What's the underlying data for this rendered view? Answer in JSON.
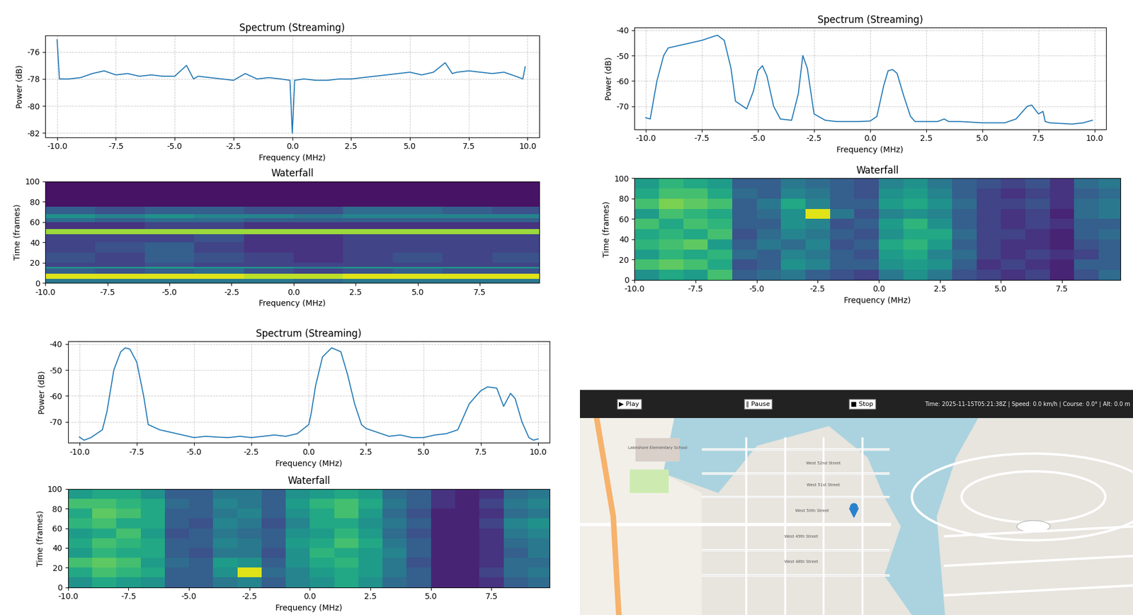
{
  "chart_data": [
    {
      "type": "line",
      "title": "Spectrum (Streaming)",
      "xlabel": "Frequency (MHz)",
      "ylabel": "Power (dB)",
      "color": "#1f77b4",
      "grid": true,
      "x": [
        -10.0,
        -9.9,
        -9.5,
        -9.0,
        -8.5,
        -8.0,
        -7.5,
        -7.0,
        -6.5,
        -6.0,
        -5.5,
        -5.0,
        -4.5,
        -4.2,
        -4.0,
        -3.5,
        -3.0,
        -2.5,
        -2.0,
        -1.5,
        -1.0,
        -0.5,
        -0.1,
        0.0,
        0.1,
        0.5,
        1.0,
        1.5,
        2.0,
        2.5,
        3.0,
        3.5,
        4.0,
        4.5,
        5.0,
        5.5,
        6.0,
        6.5,
        6.8,
        7.0,
        7.5,
        8.0,
        8.5,
        9.0,
        9.5,
        9.8,
        9.9
      ],
      "values": [
        -75.1,
        -78.0,
        -78.0,
        -77.9,
        -77.6,
        -77.4,
        -77.7,
        -77.6,
        -77.8,
        -77.7,
        -77.8,
        -77.8,
        -77.0,
        -78.0,
        -77.8,
        -77.9,
        -78.0,
        -78.1,
        -77.6,
        -78.0,
        -77.9,
        -78.0,
        -78.1,
        -82.0,
        -78.1,
        -78.0,
        -78.1,
        -78.1,
        -78.0,
        -78.0,
        -77.9,
        -77.8,
        -77.7,
        -77.6,
        -77.5,
        -77.7,
        -77.5,
        -76.8,
        -77.6,
        -77.5,
        -77.4,
        -77.5,
        -77.6,
        -77.5,
        -77.8,
        -78.0,
        -77.1
      ],
      "xlim": [
        -10.5,
        10.5
      ],
      "ylim": [
        -82.3,
        -74.8
      ],
      "xticks": [
        -10.0,
        -7.5,
        -5.0,
        -2.5,
        0.0,
        2.5,
        5.0,
        7.5,
        10.0
      ],
      "yticks": [
        -82,
        -80,
        -78,
        -76
      ]
    },
    {
      "type": "heatmap",
      "title": "Waterfall",
      "xlabel": "Frequency (MHz)",
      "ylabel": "Time (frames)",
      "x_edges": [
        -10,
        -8,
        -6,
        -4,
        -2,
        0,
        2,
        4,
        6,
        8,
        10
      ],
      "y_edges": [
        0,
        4,
        9,
        14,
        16,
        20,
        30,
        40,
        48,
        53,
        60,
        64,
        68,
        75,
        100
      ],
      "cells": [
        [
          0.4,
          0.4,
          0.4,
          0.4,
          0.4,
          0.35,
          0.4,
          0.4,
          0.4,
          0.4
        ],
        [
          0.95,
          0.95,
          0.95,
          0.95,
          0.9,
          0.9,
          0.95,
          0.95,
          0.95,
          0.95
        ],
        [
          0.3,
          0.25,
          0.3,
          0.35,
          0.25,
          0.2,
          0.25,
          0.3,
          0.25,
          0.25
        ],
        [
          0.5,
          0.5,
          0.55,
          0.5,
          0.5,
          0.45,
          0.5,
          0.5,
          0.5,
          0.5
        ],
        [
          0.2,
          0.2,
          0.25,
          0.2,
          0.2,
          0.2,
          0.2,
          0.2,
          0.2,
          0.2
        ],
        [
          0.25,
          0.2,
          0.3,
          0.25,
          0.2,
          0.15,
          0.2,
          0.25,
          0.2,
          0.25
        ],
        [
          0.2,
          0.25,
          0.3,
          0.2,
          0.15,
          0.15,
          0.2,
          0.2,
          0.2,
          0.2
        ],
        [
          0.2,
          0.2,
          0.2,
          0.25,
          0.15,
          0.15,
          0.2,
          0.2,
          0.2,
          0.2
        ],
        [
          0.85,
          0.85,
          0.85,
          0.85,
          0.85,
          0.85,
          0.85,
          0.85,
          0.85,
          0.85
        ],
        [
          0.15,
          0.15,
          0.2,
          0.2,
          0.15,
          0.15,
          0.15,
          0.15,
          0.15,
          0.15
        ],
        [
          0.35,
          0.3,
          0.35,
          0.35,
          0.3,
          0.3,
          0.3,
          0.3,
          0.3,
          0.3
        ],
        [
          0.5,
          0.45,
          0.5,
          0.45,
          0.45,
          0.4,
          0.45,
          0.45,
          0.45,
          0.45
        ],
        [
          0.3,
          0.25,
          0.3,
          0.3,
          0.25,
          0.25,
          0.35,
          0.35,
          0.3,
          0.25
        ],
        [
          0.05,
          0.05,
          0.05,
          0.05,
          0.05,
          0.05,
          0.05,
          0.05,
          0.05,
          0.05
        ]
      ],
      "color_range": [
        0,
        1
      ],
      "xlim": [
        -10.0,
        9.9
      ],
      "ylim": [
        0,
        100
      ],
      "xticks": [
        -10.0,
        -7.5,
        -5.0,
        -2.5,
        0.0,
        2.5,
        5.0,
        7.5
      ],
      "yticks": [
        0,
        20,
        40,
        60,
        80,
        100
      ]
    },
    {
      "type": "line",
      "title": "Spectrum (Streaming)",
      "xlabel": "Frequency (MHz)",
      "ylabel": "Power (dB)",
      "color": "#1f77b4",
      "grid": true,
      "x": [
        -10.0,
        -9.8,
        -9.5,
        -9.2,
        -9.0,
        -8.5,
        -8.0,
        -7.5,
        -7.0,
        -6.8,
        -6.5,
        -6.2,
        -6.0,
        -5.5,
        -5.2,
        -5.0,
        -4.8,
        -4.6,
        -4.3,
        -4.0,
        -3.5,
        -3.2,
        -3.0,
        -2.8,
        -2.5,
        -2.0,
        -1.5,
        -1.0,
        -0.5,
        0.0,
        0.3,
        0.6,
        0.8,
        1.0,
        1.2,
        1.5,
        1.8,
        2.0,
        2.5,
        3.0,
        3.3,
        3.5,
        4.0,
        5.0,
        6.0,
        6.5,
        7.0,
        7.2,
        7.5,
        7.7,
        7.8,
        8.0,
        9.0,
        9.5,
        9.9
      ],
      "values": [
        -74.5,
        -75.0,
        -60.0,
        -50.0,
        -47.0,
        -46.0,
        -45.0,
        -44.0,
        -42.5,
        -42.0,
        -44.0,
        -55.0,
        -68.0,
        -71.0,
        -64.0,
        -56.0,
        -54.0,
        -58.0,
        -70.0,
        -75.0,
        -75.5,
        -65.0,
        -50.0,
        -55.0,
        -73.0,
        -75.5,
        -76.0,
        -76.0,
        -76.0,
        -75.8,
        -74.0,
        -62.0,
        -56.0,
        -55.5,
        -57.0,
        -66.0,
        -74.0,
        -76.0,
        -76.0,
        -76.0,
        -75.0,
        -76.0,
        -76.0,
        -76.5,
        -76.5,
        -75.0,
        -70.0,
        -69.5,
        -73.0,
        -72.0,
        -76.0,
        -76.5,
        -77.0,
        -76.5,
        -75.5
      ],
      "xlim": [
        -10.5,
        10.5
      ],
      "ylim": [
        -79,
        -39
      ],
      "xticks": [
        -10.0,
        -7.5,
        -5.0,
        -2.5,
        0.0,
        2.5,
        5.0,
        7.5,
        10.0
      ],
      "yticks": [
        -70,
        -60,
        -50,
        -40
      ]
    },
    {
      "type": "heatmap",
      "title": "Waterfall",
      "xlabel": "Frequency (MHz)",
      "ylabel": "Time (frames)",
      "x_edges": [
        -10,
        -9,
        -8,
        -7,
        -6,
        -5,
        -4,
        -3,
        -2,
        -1,
        0,
        1,
        2,
        3,
        4,
        5,
        6,
        7,
        8,
        9,
        10
      ],
      "y_edges": [
        0,
        10,
        20,
        30,
        40,
        50,
        60,
        70,
        80,
        90,
        100
      ],
      "cells": [
        [
          0.5,
          0.6,
          0.55,
          0.7,
          0.3,
          0.35,
          0.4,
          0.3,
          0.25,
          0.2,
          0.4,
          0.5,
          0.4,
          0.25,
          0.2,
          0.15,
          0.2,
          0.1,
          0.25,
          0.35
        ],
        [
          0.7,
          0.75,
          0.7,
          0.6,
          0.25,
          0.3,
          0.5,
          0.45,
          0.3,
          0.3,
          0.5,
          0.55,
          0.5,
          0.3,
          0.15,
          0.2,
          0.15,
          0.1,
          0.3,
          0.3
        ],
        [
          0.55,
          0.65,
          0.6,
          0.65,
          0.35,
          0.3,
          0.45,
          0.4,
          0.3,
          0.25,
          0.55,
          0.6,
          0.45,
          0.35,
          0.2,
          0.15,
          0.2,
          0.15,
          0.2,
          0.3
        ],
        [
          0.65,
          0.7,
          0.75,
          0.55,
          0.3,
          0.4,
          0.35,
          0.45,
          0.25,
          0.3,
          0.6,
          0.65,
          0.55,
          0.3,
          0.2,
          0.15,
          0.15,
          0.1,
          0.25,
          0.3
        ],
        [
          0.6,
          0.65,
          0.6,
          0.7,
          0.25,
          0.35,
          0.45,
          0.4,
          0.3,
          0.25,
          0.5,
          0.6,
          0.6,
          0.35,
          0.2,
          0.2,
          0.15,
          0.1,
          0.3,
          0.35
        ],
        [
          0.7,
          0.6,
          0.7,
          0.65,
          0.3,
          0.3,
          0.5,
          0.45,
          0.25,
          0.3,
          0.55,
          0.65,
          0.5,
          0.3,
          0.2,
          0.15,
          0.2,
          0.15,
          0.3,
          0.3
        ],
        [
          0.55,
          0.7,
          0.65,
          0.6,
          0.3,
          0.35,
          0.5,
          0.95,
          0.4,
          0.25,
          0.45,
          0.5,
          0.45,
          0.3,
          0.2,
          0.15,
          0.2,
          0.1,
          0.35,
          0.4
        ],
        [
          0.7,
          0.8,
          0.75,
          0.7,
          0.3,
          0.4,
          0.6,
          0.45,
          0.3,
          0.3,
          0.55,
          0.6,
          0.5,
          0.35,
          0.2,
          0.2,
          0.25,
          0.15,
          0.35,
          0.4
        ],
        [
          0.6,
          0.7,
          0.7,
          0.6,
          0.35,
          0.3,
          0.45,
          0.4,
          0.3,
          0.25,
          0.5,
          0.55,
          0.45,
          0.3,
          0.2,
          0.15,
          0.2,
          0.15,
          0.3,
          0.35
        ],
        [
          0.55,
          0.65,
          0.6,
          0.55,
          0.3,
          0.3,
          0.4,
          0.35,
          0.3,
          0.25,
          0.45,
          0.5,
          0.4,
          0.3,
          0.25,
          0.2,
          0.25,
          0.15,
          0.35,
          0.4
        ]
      ],
      "color_range": [
        0,
        1
      ],
      "xlim": [
        -10.0,
        9.9
      ],
      "ylim": [
        0,
        100
      ],
      "xticks": [
        -10.0,
        -7.5,
        -5.0,
        -2.5,
        0.0,
        2.5,
        5.0,
        7.5
      ],
      "yticks": [
        0,
        20,
        40,
        60,
        80,
        100
      ]
    },
    {
      "type": "line",
      "title": "Spectrum (Streaming)",
      "xlabel": "Frequency (MHz)",
      "ylabel": "Power (dB)",
      "color": "#1f77b4",
      "grid": true,
      "x": [
        -10.0,
        -9.8,
        -9.5,
        -9.0,
        -8.8,
        -8.5,
        -8.2,
        -8.0,
        -7.8,
        -7.5,
        -7.2,
        -7.0,
        -6.5,
        -6.0,
        -5.5,
        -5.0,
        -4.5,
        -4.0,
        -3.5,
        -3.0,
        -2.5,
        -2.0,
        -1.5,
        -1.0,
        -0.5,
        0.0,
        0.1,
        0.3,
        0.6,
        1.0,
        1.4,
        1.7,
        2.0,
        2.3,
        2.5,
        3.0,
        3.5,
        4.0,
        4.5,
        5.0,
        5.5,
        6.0,
        6.5,
        6.8,
        7.0,
        7.5,
        7.8,
        8.2,
        8.5,
        8.8,
        9.0,
        9.3,
        9.6,
        9.8,
        10.0
      ],
      "values": [
        -75.8,
        -77.0,
        -76.0,
        -73.0,
        -66.0,
        -50.0,
        -43.0,
        -41.5,
        -42.0,
        -47.0,
        -60.0,
        -71.0,
        -73.0,
        -74.0,
        -75.0,
        -76.0,
        -75.5,
        -75.8,
        -76.0,
        -75.5,
        -76.0,
        -75.5,
        -75.0,
        -75.5,
        -74.5,
        -71.0,
        -67.0,
        -56.0,
        -45.0,
        -41.5,
        -43.0,
        -52.0,
        -63.0,
        -71.0,
        -72.5,
        -74.0,
        -75.5,
        -75.0,
        -76.0,
        -76.0,
        -75.0,
        -74.5,
        -73.0,
        -67.0,
        -63.0,
        -58.0,
        -56.5,
        -57.0,
        -64.0,
        -59.0,
        -61.0,
        -70.0,
        -76.0,
        -77.0,
        -76.5
      ],
      "xlim": [
        -10.5,
        10.5
      ],
      "ylim": [
        -78,
        -39
      ],
      "xticks": [
        -10.0,
        -7.5,
        -5.0,
        -2.5,
        0.0,
        2.5,
        5.0,
        7.5,
        10.0
      ],
      "yticks": [
        -70,
        -60,
        -50,
        -40
      ]
    },
    {
      "type": "heatmap",
      "title": "Waterfall",
      "xlabel": "Frequency (MHz)",
      "ylabel": "Time (frames)",
      "x_edges": [
        -10,
        -9,
        -8,
        -7,
        -6,
        -5,
        -4,
        -3,
        -2,
        -1,
        0,
        1,
        2,
        3,
        4,
        5,
        6,
        7,
        8,
        9,
        10
      ],
      "y_edges": [
        0,
        10,
        20,
        30,
        40,
        50,
        60,
        70,
        80,
        90,
        100
      ],
      "cells": [
        [
          0.5,
          0.6,
          0.55,
          0.5,
          0.3,
          0.3,
          0.4,
          0.45,
          0.3,
          0.45,
          0.5,
          0.6,
          0.5,
          0.35,
          0.3,
          0.1,
          0.1,
          0.15,
          0.3,
          0.35
        ],
        [
          0.6,
          0.7,
          0.65,
          0.6,
          0.3,
          0.3,
          0.5,
          0.95,
          0.35,
          0.45,
          0.55,
          0.6,
          0.55,
          0.4,
          0.3,
          0.1,
          0.1,
          0.2,
          0.35,
          0.4
        ],
        [
          0.7,
          0.75,
          0.7,
          0.55,
          0.35,
          0.3,
          0.55,
          0.5,
          0.3,
          0.5,
          0.6,
          0.65,
          0.55,
          0.4,
          0.25,
          0.1,
          0.1,
          0.15,
          0.35,
          0.35
        ],
        [
          0.55,
          0.65,
          0.6,
          0.6,
          0.3,
          0.25,
          0.4,
          0.4,
          0.25,
          0.5,
          0.65,
          0.6,
          0.55,
          0.45,
          0.3,
          0.1,
          0.1,
          0.15,
          0.3,
          0.4
        ],
        [
          0.6,
          0.7,
          0.65,
          0.6,
          0.3,
          0.3,
          0.45,
          0.4,
          0.3,
          0.55,
          0.6,
          0.7,
          0.6,
          0.4,
          0.3,
          0.1,
          0.1,
          0.15,
          0.35,
          0.4
        ],
        [
          0.55,
          0.6,
          0.7,
          0.55,
          0.25,
          0.3,
          0.4,
          0.35,
          0.3,
          0.5,
          0.55,
          0.65,
          0.55,
          0.35,
          0.25,
          0.1,
          0.1,
          0.15,
          0.4,
          0.45
        ],
        [
          0.65,
          0.7,
          0.6,
          0.6,
          0.3,
          0.25,
          0.45,
          0.4,
          0.25,
          0.45,
          0.6,
          0.6,
          0.5,
          0.4,
          0.3,
          0.1,
          0.1,
          0.2,
          0.45,
          0.5
        ],
        [
          0.6,
          0.75,
          0.7,
          0.6,
          0.3,
          0.3,
          0.4,
          0.45,
          0.3,
          0.5,
          0.6,
          0.7,
          0.55,
          0.35,
          0.25,
          0.1,
          0.1,
          0.15,
          0.35,
          0.4
        ],
        [
          0.7,
          0.7,
          0.65,
          0.6,
          0.35,
          0.3,
          0.45,
          0.4,
          0.3,
          0.55,
          0.65,
          0.7,
          0.6,
          0.4,
          0.3,
          0.15,
          0.1,
          0.2,
          0.4,
          0.45
        ],
        [
          0.55,
          0.6,
          0.6,
          0.5,
          0.3,
          0.3,
          0.4,
          0.4,
          0.3,
          0.5,
          0.55,
          0.6,
          0.55,
          0.35,
          0.3,
          0.15,
          0.1,
          0.15,
          0.35,
          0.4
        ]
      ],
      "color_range": [
        0,
        1
      ],
      "xlim": [
        -10.0,
        9.9
      ],
      "ylim": [
        0,
        100
      ],
      "xticks": [
        -10.0,
        -7.5,
        -5.0,
        -2.5,
        0.0,
        2.5,
        5.0,
        7.5
      ],
      "yticks": [
        0,
        20,
        40,
        60,
        80,
        100
      ]
    }
  ],
  "map": {
    "buttons": [
      "▶ Play",
      "‖ Pause",
      "■ Stop"
    ],
    "status": "Time: 2025-11-15T05:21:38Z | Speed: 0.0 km/h | Course: 0.0° | Alt: 0.0 m",
    "labels": [
      "Lakeshore Elementary School",
      "West 52nd Street",
      "West 51st Street",
      "West 50th Street",
      "West 49th Street",
      "West 48th Street"
    ]
  }
}
